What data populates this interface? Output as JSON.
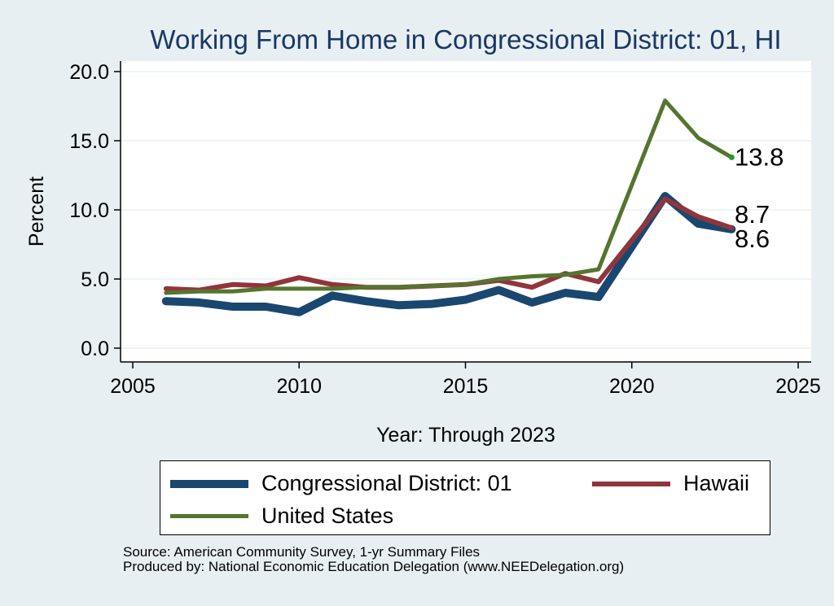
{
  "chart_data": {
    "type": "line",
    "title": "Working From Home in Congressional District: 01, HI",
    "xlabel": "Year: Through 2023",
    "ylabel": "Percent",
    "xlim": [
      2005,
      2025
    ],
    "ylim": [
      0,
      20
    ],
    "x_ticks": [
      "2005",
      "2010",
      "2015",
      "2020",
      "2025"
    ],
    "y_ticks": [
      "0.0",
      "5.0",
      "10.0",
      "15.0",
      "20.0"
    ],
    "grid": true,
    "legend_position": "bottom",
    "x": [
      2006,
      2007,
      2008,
      2009,
      2010,
      2011,
      2012,
      2013,
      2014,
      2015,
      2016,
      2017,
      2018,
      2019,
      2020,
      2021,
      2022,
      2023
    ],
    "series": [
      {
        "name": "Congressional District: 01",
        "color": "#1a476f",
        "values": [
          3.4,
          3.3,
          3.0,
          3.0,
          2.6,
          3.8,
          3.4,
          3.1,
          3.2,
          3.5,
          4.2,
          3.3,
          4.0,
          3.7,
          null,
          11.0,
          9.0,
          8.6
        ],
        "end_label": "8.6"
      },
      {
        "name": "Hawaii",
        "color": "#90353b",
        "values": [
          4.3,
          4.2,
          4.6,
          4.5,
          5.1,
          4.6,
          4.4,
          4.4,
          4.5,
          4.6,
          4.9,
          4.4,
          5.4,
          4.8,
          null,
          10.8,
          9.5,
          8.7
        ],
        "end_label": "8.7"
      },
      {
        "name": "United States",
        "color": "#55752f",
        "values": [
          4.0,
          4.1,
          4.1,
          4.3,
          4.3,
          4.3,
          4.4,
          4.4,
          4.5,
          4.6,
          5.0,
          5.2,
          5.3,
          5.7,
          null,
          17.9,
          15.2,
          13.8
        ],
        "end_label": "13.8"
      }
    ],
    "source_lines": [
      "Source: American Community Survey, 1-yr Summary Files",
      "Produced by: National Economic Education Delegation (www.NEEDelegation.org)"
    ]
  }
}
